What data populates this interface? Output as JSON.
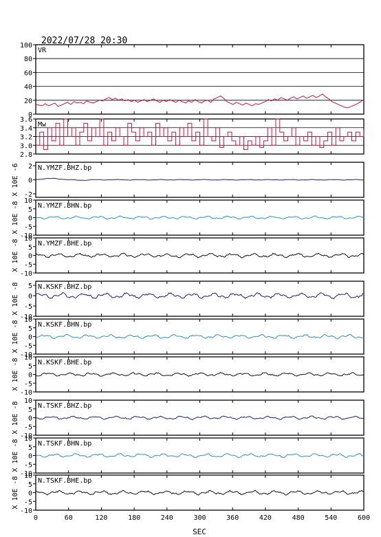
{
  "title": "2022/07/28 20:30",
  "colors": {
    "red": "#d0103a",
    "navy": "#1b1f7a",
    "sky": "#2f8fd0",
    "black": "#111111"
  },
  "chart_data": {
    "type": "line",
    "xlabel": "SEC",
    "xlim": [
      0,
      600
    ],
    "xticks": [
      "0",
      "60",
      "120",
      "180",
      "240",
      "300",
      "360",
      "420",
      "480",
      "540",
      "600"
    ],
    "panels": [
      {
        "label": "VR",
        "ylim": [
          0,
          100
        ],
        "yticks": [
          "0",
          "20",
          "40",
          "60",
          "80",
          "100"
        ],
        "hgrid": [
          0,
          20,
          40,
          60,
          80,
          100
        ],
        "ylabel": "",
        "color": "red",
        "kind": "vr",
        "values": [
          14,
          13,
          12,
          15,
          12,
          14,
          16,
          11,
          13,
          15,
          17,
          14,
          18,
          16,
          17,
          15,
          19,
          17,
          16,
          18,
          20,
          19,
          22,
          24,
          21,
          23,
          20,
          22,
          19,
          21,
          18,
          20,
          17,
          19,
          21,
          18,
          20,
          22,
          19,
          17,
          20,
          18,
          21,
          19,
          17,
          20,
          18,
          16,
          19,
          17,
          21,
          18,
          16,
          19,
          20,
          17,
          22,
          24,
          26,
          23,
          18,
          16,
          14,
          17,
          15,
          13,
          16,
          14,
          12,
          15,
          14,
          16,
          18,
          21,
          19,
          22,
          20,
          24,
          22,
          20,
          23,
          25,
          22,
          24,
          26,
          23,
          25,
          27,
          24,
          26,
          29,
          25,
          22,
          18,
          16,
          14,
          12,
          10,
          9,
          11,
          13,
          15,
          18,
          21
        ]
      },
      {
        "label": "Mw",
        "ylim": [
          2.8,
          3.6
        ],
        "yticks": [
          "2.8",
          "3.0",
          "3.2",
          "3.4",
          "3.6"
        ],
        "hgrid": [
          3.0,
          3.2,
          3.4,
          3.6
        ],
        "ylabel": "",
        "color": "red",
        "kind": "mw",
        "values": [
          3.0,
          3.3,
          2.9,
          3.4,
          3.1,
          3.5,
          3.0,
          3.6,
          3.2,
          3.4,
          3.0,
          3.3,
          3.5,
          3.1,
          3.4,
          3.2,
          3.6,
          3.0,
          3.3,
          3.1,
          3.4,
          3.2,
          3.0,
          3.5,
          3.3,
          3.1,
          3.4,
          3.2,
          3.3,
          3.0,
          3.5,
          3.2,
          3.4,
          3.1,
          3.3,
          3.0,
          3.4,
          3.2,
          3.5,
          3.1,
          3.3,
          3.0,
          3.6,
          3.2,
          3.1,
          3.4,
          2.95,
          3.2,
          3.3,
          3.1,
          3.0,
          3.2,
          2.9,
          3.1,
          3.0,
          3.2,
          2.95,
          3.1,
          3.4,
          3.0,
          3.6,
          3.3,
          3.1,
          3.2,
          3.4,
          3.0,
          3.2,
          3.1,
          3.3,
          3.0,
          3.2,
          2.95,
          3.1,
          3.3,
          3.0,
          3.4,
          3.1,
          3.2,
          3.3,
          3.1,
          3.3,
          3.2,
          3.35
        ]
      },
      {
        "label": "N.YMZF.BHZ.bp",
        "ylim": [
          -2.5,
          2.5
        ],
        "yticks": [
          "-2",
          "0",
          "2"
        ],
        "ytick_vals": [
          -2,
          0,
          2
        ],
        "hgrid": [],
        "ylabel": "X 10E -6",
        "color": "navy",
        "kind": "wave",
        "amp": 0.05,
        "spike": 0.25,
        "seed": 1
      },
      {
        "label": "N.YMZF.BHN.bp",
        "ylim": [
          -10,
          10
        ],
        "yticks": [
          "-10",
          "-5",
          "0",
          "5",
          "10"
        ],
        "ytick_vals": [
          -10,
          -5,
          0,
          5,
          10
        ],
        "hgrid": [],
        "ylabel": "X 10E -8",
        "color": "sky",
        "kind": "wave",
        "amp": 0.9,
        "spike": 0,
        "seed": 2
      },
      {
        "label": "N.YMZF.BHE.bp",
        "ylim": [
          -10,
          10
        ],
        "yticks": [
          "-10",
          "-5",
          "0",
          "5",
          "10"
        ],
        "ytick_vals": [
          -10,
          -5,
          0,
          5,
          10
        ],
        "hgrid": [],
        "ylabel": "X 10E -8",
        "color": "black",
        "kind": "wave",
        "amp": 1.3,
        "spike": 0,
        "seed": 3
      },
      {
        "label": "N.KSKF.BHZ.bp",
        "ylim": [
          -10,
          7
        ],
        "yticks": [
          "-10",
          "-5",
          "0",
          "5"
        ],
        "ytick_vals": [
          -10,
          -5,
          0,
          5
        ],
        "hgrid": [],
        "ylabel": "X 10E -8",
        "color": "navy",
        "kind": "wave",
        "amp": 1.4,
        "spike": 0,
        "seed": 4
      },
      {
        "label": "N.KSKF.BHN.bp",
        "ylim": [
          -10,
          10
        ],
        "yticks": [
          "-10",
          "-5",
          "0",
          "5",
          "10"
        ],
        "ytick_vals": [
          -10,
          -5,
          0,
          5,
          10
        ],
        "hgrid": [],
        "ylabel": "X 10E -8",
        "color": "sky",
        "kind": "wave",
        "amp": 1.2,
        "spike": 0,
        "seed": 5
      },
      {
        "label": "N.KSKF.BHE.bp",
        "ylim": [
          -10,
          10
        ],
        "yticks": [
          "-10",
          "-5",
          "0",
          "5",
          "10"
        ],
        "ytick_vals": [
          -10,
          -5,
          0,
          5,
          10
        ],
        "hgrid": [],
        "ylabel": "X 10E -8",
        "color": "black",
        "kind": "wave",
        "amp": 1.1,
        "spike": 0,
        "seed": 6
      },
      {
        "label": "N.TSKF.BHZ.bp",
        "ylim": [
          -10,
          10
        ],
        "yticks": [
          "-10",
          "-5",
          "0",
          "5",
          "10"
        ],
        "ytick_vals": [
          -10,
          -5,
          0,
          5,
          10
        ],
        "hgrid": [],
        "ylabel": "X 10E -8",
        "color": "navy",
        "kind": "wave",
        "amp": 1.0,
        "spike": 0,
        "seed": 7
      },
      {
        "label": "N.TSKF.BHN.bp",
        "ylim": [
          -10,
          10
        ],
        "yticks": [
          "-10",
          "-5",
          "0",
          "5",
          "10"
        ],
        "ytick_vals": [
          -10,
          -5,
          0,
          5,
          10
        ],
        "hgrid": [],
        "ylabel": "X 10E -8",
        "color": "sky",
        "kind": "wave",
        "amp": 1.2,
        "spike": 0,
        "seed": 8
      },
      {
        "label": "N.TSKF.BHE.bp",
        "ylim": [
          -10,
          10
        ],
        "yticks": [
          "-10",
          "-5",
          "0",
          "5",
          "10"
        ],
        "ytick_vals": [
          -10,
          -5,
          0,
          5,
          10
        ],
        "hgrid": [],
        "ylabel": "X 10E -8",
        "color": "black",
        "kind": "wave",
        "amp": 1.3,
        "spike": 0,
        "seed": 9
      }
    ]
  }
}
